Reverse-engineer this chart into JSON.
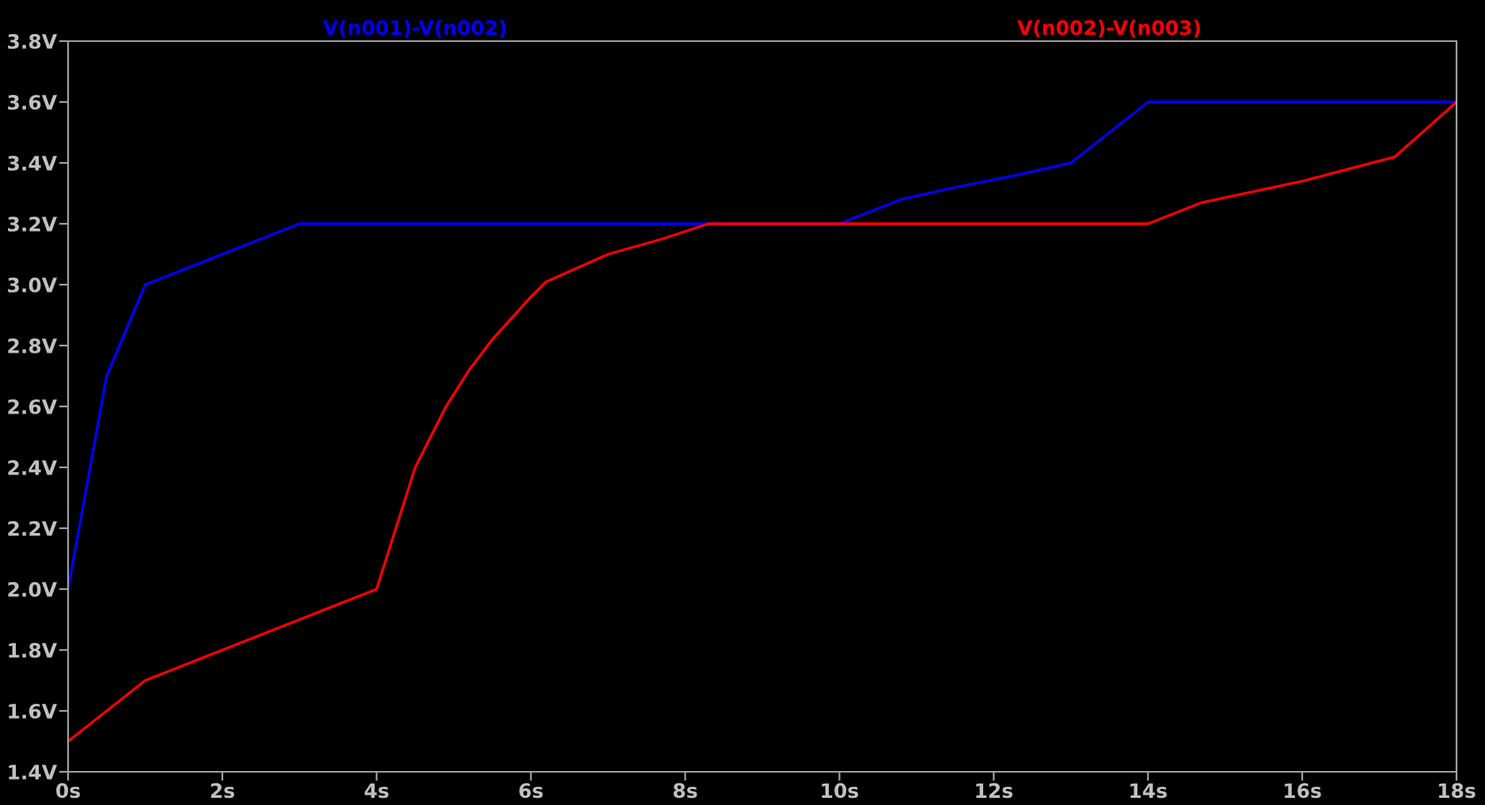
{
  "chart_data": {
    "type": "line",
    "legend": "top",
    "grid": false,
    "marker": "none",
    "line_style": "solid",
    "xlim": [
      0,
      18
    ],
    "xticks": [
      {
        "value": 0,
        "label": "0s"
      },
      {
        "value": 2,
        "label": "2s"
      },
      {
        "value": 4,
        "label": "4s"
      },
      {
        "value": 6,
        "label": "6s"
      },
      {
        "value": 8,
        "label": "8s"
      },
      {
        "value": 10,
        "label": "10s"
      },
      {
        "value": 12,
        "label": "12s"
      },
      {
        "value": 14,
        "label": "14s"
      },
      {
        "value": 16,
        "label": "16s"
      },
      {
        "value": 18,
        "label": "18s"
      }
    ],
    "ylim": [
      1.4,
      3.8
    ],
    "yticks": [
      {
        "value": 1.4,
        "label": "1.4V"
      },
      {
        "value": 1.6,
        "label": "1.6V"
      },
      {
        "value": 1.8,
        "label": "1.8V"
      },
      {
        "value": 2.0,
        "label": "2.0V"
      },
      {
        "value": 2.2,
        "label": "2.2V"
      },
      {
        "value": 2.4,
        "label": "2.4V"
      },
      {
        "value": 2.6,
        "label": "2.6V"
      },
      {
        "value": 2.8,
        "label": "2.8V"
      },
      {
        "value": 3.0,
        "label": "3.0V"
      },
      {
        "value": 3.2,
        "label": "3.2V"
      },
      {
        "value": 3.4,
        "label": "3.4V"
      },
      {
        "value": 3.6,
        "label": "3.6V"
      },
      {
        "value": 3.8,
        "label": "3.8V"
      }
    ],
    "series": [
      {
        "name": "V(n001)-V(n002)",
        "color": "#0000ff",
        "x": [
          0,
          0.5,
          1,
          3,
          4.6,
          5,
          10,
          10.8,
          11.5,
          12.3,
          13,
          14,
          18
        ],
        "values": [
          2.0,
          2.7,
          3.0,
          3.2,
          3.2,
          3.2,
          3.2,
          3.28,
          3.32,
          3.36,
          3.4,
          3.6,
          3.6
        ]
      },
      {
        "name": "V(n002)-V(n003)",
        "color": "#ff0000",
        "x": [
          0,
          0.5,
          1,
          1.5,
          2,
          2.5,
          3,
          4,
          4.5,
          4.9,
          5.2,
          5.5,
          6,
          6.2,
          7,
          7.7,
          8.3,
          13,
          14,
          14.7,
          16,
          17.2,
          18
        ],
        "values": [
          1.5,
          1.6,
          1.7,
          1.75,
          1.8,
          1.85,
          1.9,
          2.0,
          2.4,
          2.6,
          2.72,
          2.82,
          2.96,
          3.01,
          3.1,
          3.15,
          3.2,
          3.2,
          3.2,
          3.27,
          3.34,
          3.42,
          3.6
        ]
      }
    ]
  }
}
